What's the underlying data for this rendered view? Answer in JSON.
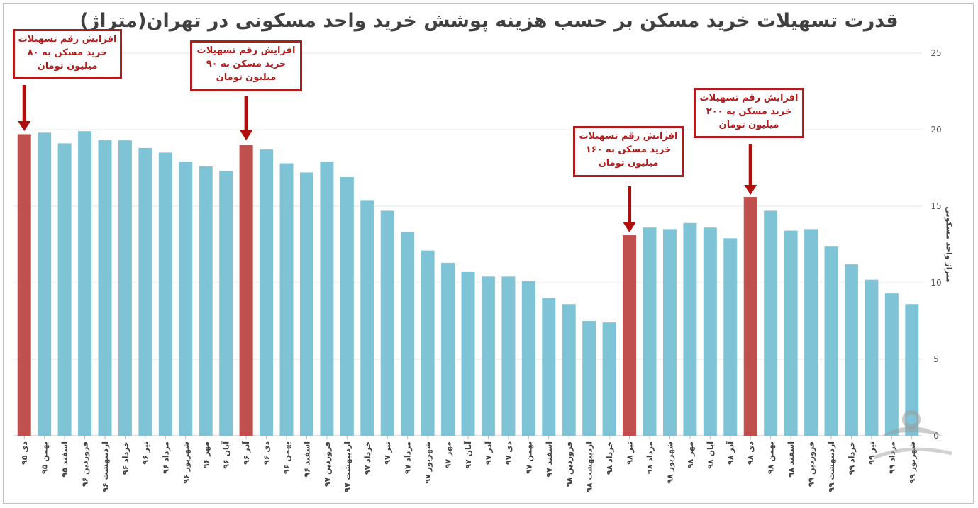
{
  "title": "قدرت تسهیلات خرید مسکن بر حسب هزینه پوشش خرید واحد مسکونی در تهران(متراژ)",
  "annotations": [
    {
      "text": "افزایش رقم تسهیلات خرید مسکن به ۸۰ میلیون تومان",
      "at": "دی ۹۵"
    },
    {
      "text": "افزایش رقم تسهیلات خرید مسکن به ۹۰ میلیون تومان",
      "at": "آذر ۹۶"
    },
    {
      "text": "افزایش رقم تسهیلات خرید مسکن به ۱۶۰ میلیون تومان",
      "at": "تیر ۹۸"
    },
    {
      "text": "افزایش رقم تسهیلات خرید مسکن به ۲۰۰ میلیون تومان",
      "at": "دی ۹۸"
    }
  ],
  "colors": {
    "bar": "#7ec4d6",
    "highlight": "#c0504d",
    "arrow": "#b00d0d",
    "grid": "#e6e6e6"
  },
  "chart_data": {
    "type": "bar",
    "title": "قدرت تسهیلات خرید مسکن بر حسب هزینه پوشش خرید واحد مسکونی در تهران(متراژ)",
    "ylabel": "متراژ واحد مسکونی",
    "xlabel": "",
    "ylim": [
      0,
      25
    ],
    "yticks": [
      0,
      5,
      10,
      15,
      20,
      25
    ],
    "y_axis_side": "right",
    "grid": true,
    "categories": [
      "دی ۹۵",
      "بهمن ۹۵",
      "اسفند ۹۵",
      "فروردین ۹۶",
      "اردیبهشت ۹۶",
      "خرداد ۹۶",
      "تیر ۹۶",
      "مرداد ۹۶",
      "شهریور ۹۶",
      "مهر ۹۶",
      "آبان ۹۶",
      "آذر ۹۶",
      "دی ۹۶",
      "بهمن ۹۶",
      "اسفند ۹۶",
      "فروردین ۹۷",
      "اردیبهشت ۹۷",
      "خرداد ۹۷",
      "تیر ۹۷",
      "مرداد ۹۷",
      "شهریور ۹۷",
      "مهر ۹۷",
      "آبان ۹۷",
      "آذر ۹۷",
      "دی ۹۷",
      "بهمن ۹۷",
      "اسفند ۹۷",
      "فروردین ۹۸",
      "اردیبهشت ۹۸",
      "خرداد ۹۸",
      "تیر ۹۸",
      "مرداد ۹۸",
      "شهریور ۹۸",
      "مهر ۹۸",
      "آبان ۹۸",
      "آذر ۹۸",
      "دی ۹۸",
      "بهمن ۹۸",
      "اسفند ۹۸",
      "فروردین ۹۹",
      "اردیبهشت ۹۹",
      "خرداد ۹۹",
      "تیر ۹۹",
      "مرداد ۹۹",
      "شهریور ۹۹"
    ],
    "values": [
      19.7,
      19.8,
      19.1,
      19.9,
      19.3,
      19.3,
      18.8,
      18.5,
      17.9,
      17.6,
      17.3,
      19.0,
      18.7,
      17.8,
      17.2,
      17.9,
      16.9,
      15.4,
      14.7,
      13.3,
      12.1,
      11.3,
      10.7,
      10.4,
      10.4,
      10.1,
      9.0,
      8.6,
      7.5,
      7.4,
      13.1,
      13.6,
      13.5,
      13.9,
      13.6,
      12.9,
      15.6,
      14.7,
      13.4,
      13.5,
      12.4,
      11.2,
      10.2,
      9.3,
      8.6
    ],
    "highlighted": [
      "دی ۹۵",
      "آذر ۹۶",
      "تیر ۹۸",
      "دی ۹۸"
    ]
  }
}
